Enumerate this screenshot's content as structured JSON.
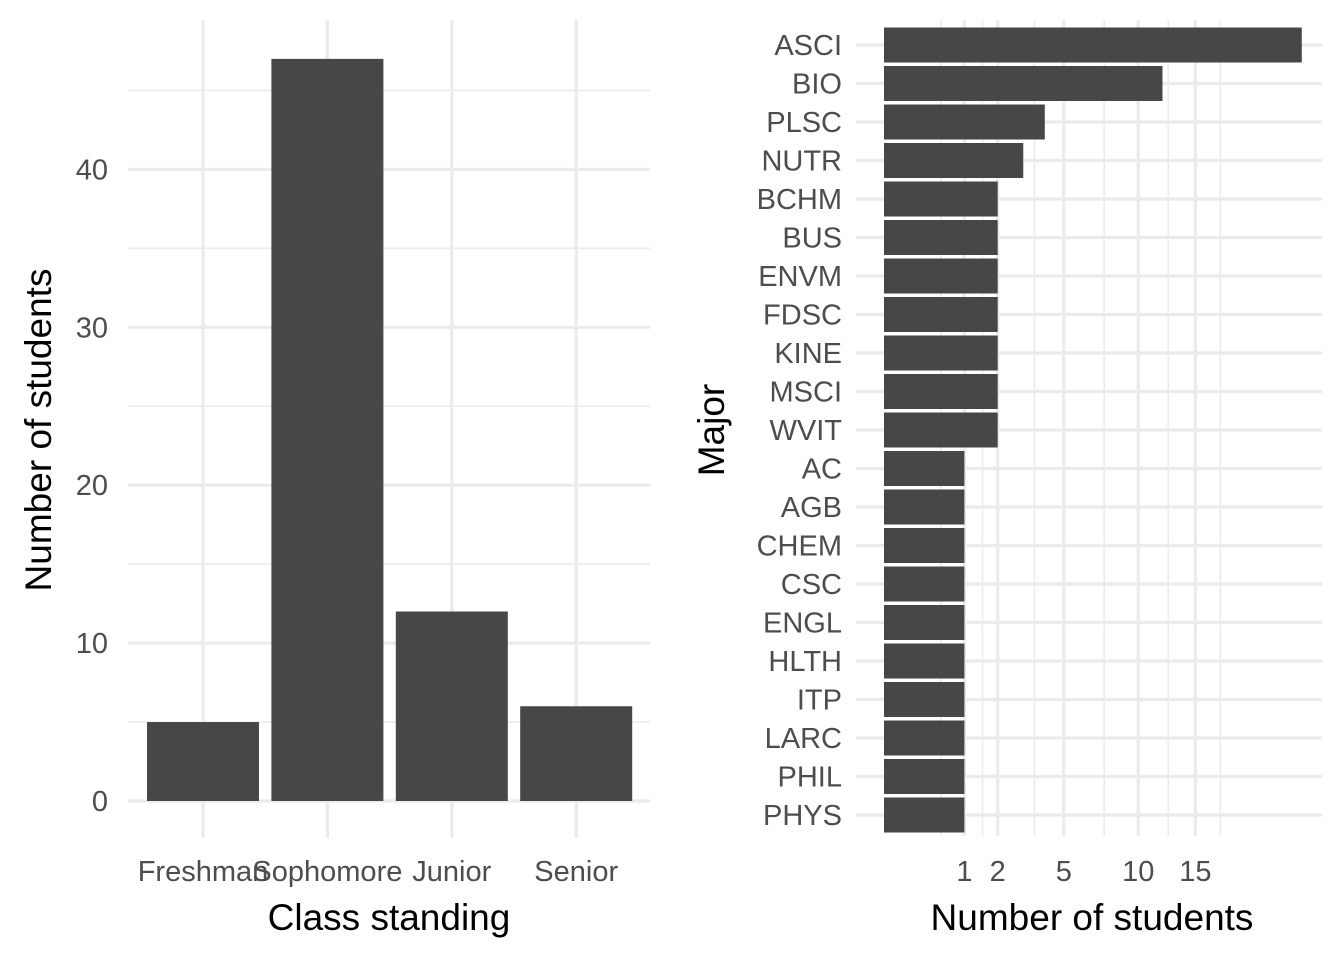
{
  "colors": {
    "bar": "#474747",
    "grid": "#ebebeb",
    "tick_text": "#4d4d4d",
    "title_text": "#000000",
    "background": "#ffffff"
  },
  "chart_data": [
    {
      "type": "bar",
      "orientation": "vertical",
      "xlabel": "Class standing",
      "ylabel": "Number of students",
      "categories": [
        "Freshman",
        "Sophomore",
        "Junior",
        "Senior"
      ],
      "values": [
        5,
        47,
        12,
        6
      ],
      "ylim": [
        0,
        50
      ],
      "yticks": [
        0,
        10,
        20,
        30,
        40
      ],
      "grid": true,
      "legend": "none"
    },
    {
      "type": "bar",
      "orientation": "horizontal",
      "xlabel": "Number of students",
      "ylabel": "Major",
      "x_scale": "sqrt",
      "xticks": [
        1,
        2,
        5,
        10,
        15
      ],
      "xlim": [
        0,
        28
      ],
      "categories": [
        "ASCI",
        "BIO",
        "PLSC",
        "NUTR",
        "BCHM",
        "BUS",
        "ENVM",
        "FDSC",
        "KINE",
        "MSCI",
        "WVIT",
        "AC",
        "AGB",
        "CHEM",
        "CSC",
        "ENGL",
        "HLTH",
        "ITP",
        "LARC",
        "PHIL",
        "PHYS"
      ],
      "values": [
        27,
        12,
        4,
        3,
        2,
        2,
        2,
        2,
        2,
        2,
        2,
        1,
        1,
        1,
        1,
        1,
        1,
        1,
        1,
        1,
        1
      ],
      "grid": true,
      "legend": "none"
    }
  ]
}
